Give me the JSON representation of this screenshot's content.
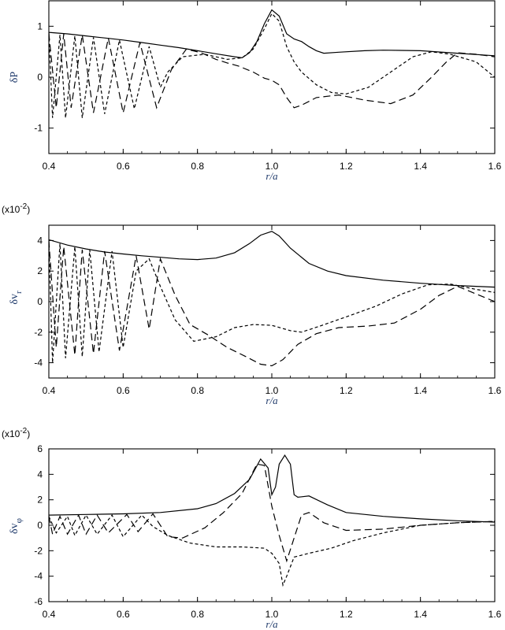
{
  "chart_data": [
    {
      "type": "line",
      "xlabel": "r/a",
      "ylabel": "δP",
      "multiplier": "",
      "xlim": [
        0.4,
        1.6
      ],
      "ylim": [
        -1.5,
        1.5
      ],
      "xticks": [
        "0.4",
        "0.6",
        "0.8",
        "1.0",
        "1.2",
        "1.4",
        "1.6"
      ],
      "yticks": [
        -1,
        0,
        1
      ],
      "ytick_labels": [
        "-1",
        "0",
        "1"
      ],
      "series": [
        {
          "style": "solid",
          "points": [
            [
              0.4,
              0.88
            ],
            [
              0.45,
              0.85
            ],
            [
              0.5,
              0.81
            ],
            [
              0.55,
              0.77
            ],
            [
              0.6,
              0.73
            ],
            [
              0.65,
              0.68
            ],
            [
              0.7,
              0.63
            ],
            [
              0.75,
              0.58
            ],
            [
              0.8,
              0.52
            ],
            [
              0.85,
              0.46
            ],
            [
              0.9,
              0.4
            ],
            [
              0.92,
              0.38
            ],
            [
              0.94,
              0.48
            ],
            [
              0.96,
              0.7
            ],
            [
              0.98,
              1.05
            ],
            [
              1.0,
              1.32
            ],
            [
              1.02,
              1.2
            ],
            [
              1.04,
              0.85
            ],
            [
              1.06,
              0.75
            ],
            [
              1.08,
              0.7
            ],
            [
              1.1,
              0.6
            ],
            [
              1.12,
              0.52
            ],
            [
              1.14,
              0.47
            ],
            [
              1.18,
              0.49
            ],
            [
              1.25,
              0.52
            ],
            [
              1.3,
              0.53
            ],
            [
              1.4,
              0.52
            ],
            [
              1.5,
              0.47
            ],
            [
              1.6,
              0.42
            ]
          ]
        },
        {
          "style": "long-dash",
          "points": [
            [
              0.4,
              0.86
            ],
            [
              0.42,
              -0.6
            ],
            [
              0.44,
              0.85
            ],
            [
              0.46,
              -0.6
            ],
            [
              0.49,
              0.83
            ],
            [
              0.52,
              -0.7
            ],
            [
              0.56,
              0.77
            ],
            [
              0.6,
              -0.7
            ],
            [
              0.645,
              0.68
            ],
            [
              0.69,
              -0.6
            ],
            [
              0.73,
              0.15
            ],
            [
              0.77,
              0.55
            ],
            [
              0.81,
              0.48
            ],
            [
              0.85,
              0.35
            ],
            [
              0.88,
              0.28
            ],
            [
              0.91,
              0.22
            ],
            [
              0.95,
              0.1
            ],
            [
              0.98,
              -0.02
            ],
            [
              1.0,
              -0.06
            ],
            [
              1.02,
              -0.15
            ],
            [
              1.04,
              -0.4
            ],
            [
              1.06,
              -0.6
            ],
            [
              1.08,
              -0.55
            ],
            [
              1.12,
              -0.4
            ],
            [
              1.18,
              -0.35
            ],
            [
              1.25,
              -0.45
            ],
            [
              1.32,
              -0.52
            ],
            [
              1.38,
              -0.35
            ],
            [
              1.43,
              0.0
            ],
            [
              1.47,
              0.3
            ],
            [
              1.5,
              0.48
            ],
            [
              1.55,
              0.45
            ],
            [
              1.6,
              0.4
            ]
          ]
        },
        {
          "style": "short-dash",
          "points": [
            [
              0.4,
              0.87
            ],
            [
              0.41,
              -0.8
            ],
            [
              0.43,
              0.83
            ],
            [
              0.445,
              -0.8
            ],
            [
              0.47,
              0.81
            ],
            [
              0.49,
              -0.8
            ],
            [
              0.52,
              0.78
            ],
            [
              0.55,
              -0.72
            ],
            [
              0.59,
              0.73
            ],
            [
              0.63,
              -0.62
            ],
            [
              0.67,
              0.6
            ],
            [
              0.7,
              -0.2
            ],
            [
              0.72,
              0.1
            ],
            [
              0.76,
              0.4
            ],
            [
              0.82,
              0.45
            ],
            [
              0.88,
              0.35
            ],
            [
              0.92,
              0.38
            ],
            [
              0.95,
              0.55
            ],
            [
              0.98,
              0.95
            ],
            [
              1.0,
              1.25
            ],
            [
              1.02,
              1.1
            ],
            [
              1.04,
              0.6
            ],
            [
              1.06,
              0.3
            ],
            [
              1.08,
              0.1
            ],
            [
              1.12,
              -0.15
            ],
            [
              1.16,
              -0.3
            ],
            [
              1.2,
              -0.33
            ],
            [
              1.26,
              -0.2
            ],
            [
              1.32,
              0.1
            ],
            [
              1.38,
              0.4
            ],
            [
              1.43,
              0.5
            ],
            [
              1.48,
              0.45
            ],
            [
              1.55,
              0.3
            ],
            [
              1.6,
              0.0
            ]
          ]
        }
      ]
    },
    {
      "type": "line",
      "xlabel": "r/a",
      "ylabel": "δv",
      "ylabel_sub": "r",
      "multiplier": "(x10",
      "multiplier_exp": "-2",
      "multiplier_close": ")",
      "xlim": [
        0.4,
        1.6
      ],
      "ylim": [
        -5,
        5
      ],
      "xticks": [
        "0.4",
        "0.6",
        "0.8",
        "1.0",
        "1.2",
        "1.4",
        "1.6"
      ],
      "yticks": [
        -4,
        -2,
        0,
        2,
        4
      ],
      "ytick_labels": [
        "-4",
        "-2",
        "0",
        "2",
        "4"
      ],
      "series": [
        {
          "style": "solid",
          "points": [
            [
              0.4,
              4.05
            ],
            [
              0.45,
              3.7
            ],
            [
              0.5,
              3.45
            ],
            [
              0.55,
              3.25
            ],
            [
              0.6,
              3.12
            ],
            [
              0.65,
              3.0
            ],
            [
              0.7,
              2.9
            ],
            [
              0.75,
              2.8
            ],
            [
              0.8,
              2.75
            ],
            [
              0.85,
              2.85
            ],
            [
              0.9,
              3.2
            ],
            [
              0.94,
              3.8
            ],
            [
              0.97,
              4.35
            ],
            [
              1.0,
              4.6
            ],
            [
              1.02,
              4.3
            ],
            [
              1.05,
              3.5
            ],
            [
              1.1,
              2.5
            ],
            [
              1.15,
              2.0
            ],
            [
              1.2,
              1.7
            ],
            [
              1.3,
              1.4
            ],
            [
              1.4,
              1.2
            ],
            [
              1.5,
              1.05
            ],
            [
              1.6,
              0.95
            ]
          ]
        },
        {
          "style": "long-dash",
          "points": [
            [
              0.4,
              4.0
            ],
            [
              0.42,
              -3.0
            ],
            [
              0.44,
              3.6
            ],
            [
              0.47,
              -3.5
            ],
            [
              0.49,
              3.4
            ],
            [
              0.52,
              -3.4
            ],
            [
              0.55,
              3.3
            ],
            [
              0.59,
              -3.2
            ],
            [
              0.635,
              3.0
            ],
            [
              0.67,
              -1.8
            ],
            [
              0.7,
              2.8
            ],
            [
              0.74,
              0.4
            ],
            [
              0.78,
              -1.5
            ],
            [
              0.83,
              -2.2
            ],
            [
              0.88,
              -3.0
            ],
            [
              0.93,
              -3.6
            ],
            [
              0.97,
              -4.1
            ],
            [
              1.0,
              -4.2
            ],
            [
              1.03,
              -3.8
            ],
            [
              1.07,
              -2.8
            ],
            [
              1.12,
              -2.1
            ],
            [
              1.18,
              -1.7
            ],
            [
              1.26,
              -1.6
            ],
            [
              1.33,
              -1.4
            ],
            [
              1.4,
              -0.5
            ],
            [
              1.45,
              0.4
            ],
            [
              1.5,
              1.0
            ],
            [
              1.55,
              0.5
            ],
            [
              1.6,
              0.0
            ]
          ]
        },
        {
          "style": "short-dash",
          "points": [
            [
              0.4,
              3.9
            ],
            [
              0.41,
              -4.0
            ],
            [
              0.43,
              3.8
            ],
            [
              0.445,
              -3.7
            ],
            [
              0.47,
              3.6
            ],
            [
              0.49,
              -3.6
            ],
            [
              0.51,
              3.4
            ],
            [
              0.535,
              -3.3
            ],
            [
              0.57,
              3.3
            ],
            [
              0.6,
              -3.0
            ],
            [
              0.635,
              2.0
            ],
            [
              0.67,
              2.8
            ],
            [
              0.7,
              1.0
            ],
            [
              0.74,
              -1.2
            ],
            [
              0.79,
              -2.6
            ],
            [
              0.85,
              -2.3
            ],
            [
              0.9,
              -1.7
            ],
            [
              0.95,
              -1.5
            ],
            [
              1.0,
              -1.55
            ],
            [
              1.05,
              -1.9
            ],
            [
              1.08,
              -2.0
            ],
            [
              1.13,
              -1.6
            ],
            [
              1.2,
              -1.0
            ],
            [
              1.28,
              -0.3
            ],
            [
              1.35,
              0.5
            ],
            [
              1.42,
              1.1
            ],
            [
              1.48,
              1.15
            ],
            [
              1.55,
              0.8
            ],
            [
              1.6,
              0.6
            ]
          ]
        }
      ]
    },
    {
      "type": "line",
      "xlabel": "r/a",
      "ylabel": "δv",
      "ylabel_sub": "φ",
      "multiplier": "(x10",
      "multiplier_exp": "-2",
      "multiplier_close": ")",
      "xlim": [
        0.4,
        1.6
      ],
      "ylim": [
        -6,
        6
      ],
      "xticks": [
        "0.4",
        "0.6",
        "0.8",
        "1.0",
        "1.2",
        "1.4",
        "1.6"
      ],
      "yticks": [
        -6,
        -4,
        -2,
        0,
        2,
        4,
        6
      ],
      "ytick_labels": [
        "-6",
        "-4",
        "-2",
        "0",
        "2",
        "4",
        "6"
      ],
      "series": [
        {
          "style": "solid",
          "points": [
            [
              0.4,
              0.8
            ],
            [
              0.5,
              0.85
            ],
            [
              0.6,
              0.9
            ],
            [
              0.7,
              1.0
            ],
            [
              0.8,
              1.3
            ],
            [
              0.85,
              1.7
            ],
            [
              0.9,
              2.5
            ],
            [
              0.94,
              3.6
            ],
            [
              0.97,
              5.2
            ],
            [
              0.99,
              4.5
            ],
            [
              1.0,
              2.4
            ],
            [
              1.01,
              3.0
            ],
            [
              1.02,
              4.8
            ],
            [
              1.035,
              5.5
            ],
            [
              1.05,
              4.8
            ],
            [
              1.06,
              2.4
            ],
            [
              1.07,
              2.2
            ],
            [
              1.1,
              2.3
            ],
            [
              1.15,
              1.6
            ],
            [
              1.2,
              1.0
            ],
            [
              1.3,
              0.7
            ],
            [
              1.4,
              0.5
            ],
            [
              1.5,
              0.35
            ],
            [
              1.6,
              0.25
            ]
          ]
        },
        {
          "style": "long-dash",
          "points": [
            [
              0.4,
              0.7
            ],
            [
              0.41,
              -0.7
            ],
            [
              0.43,
              0.7
            ],
            [
              0.45,
              -0.7
            ],
            [
              0.48,
              0.8
            ],
            [
              0.5,
              -0.7
            ],
            [
              0.53,
              0.8
            ],
            [
              0.56,
              -0.6
            ],
            [
              0.61,
              0.85
            ],
            [
              0.64,
              -0.5
            ],
            [
              0.68,
              0.9
            ],
            [
              0.72,
              -0.9
            ],
            [
              0.76,
              -1.0
            ],
            [
              0.82,
              -0.2
            ],
            [
              0.87,
              1.0
            ],
            [
              0.92,
              2.5
            ],
            [
              0.96,
              4.8
            ],
            [
              0.98,
              4.7
            ],
            [
              1.0,
              1.5
            ],
            [
              1.02,
              -0.8
            ],
            [
              1.04,
              -2.8
            ],
            [
              1.06,
              -1.0
            ],
            [
              1.08,
              0.8
            ],
            [
              1.1,
              1.0
            ],
            [
              1.14,
              0.2
            ],
            [
              1.2,
              -0.4
            ],
            [
              1.3,
              -0.3
            ],
            [
              1.4,
              0.0
            ],
            [
              1.5,
              0.2
            ],
            [
              1.6,
              0.3
            ]
          ]
        },
        {
          "style": "short-dash",
          "points": [
            [
              0.4,
              0.7
            ],
            [
              0.42,
              -0.6
            ],
            [
              0.45,
              0.7
            ],
            [
              0.47,
              -0.8
            ],
            [
              0.5,
              0.8
            ],
            [
              0.53,
              -0.7
            ],
            [
              0.57,
              0.8
            ],
            [
              0.6,
              -0.9
            ],
            [
              0.65,
              0.8
            ],
            [
              0.68,
              -0.1
            ],
            [
              0.72,
              -0.8
            ],
            [
              0.78,
              -1.4
            ],
            [
              0.85,
              -1.7
            ],
            [
              0.92,
              -1.7
            ],
            [
              0.98,
              -1.8
            ],
            [
              1.0,
              -2.2
            ],
            [
              1.02,
              -3.0
            ],
            [
              1.03,
              -4.7
            ],
            [
              1.04,
              -4.0
            ],
            [
              1.06,
              -2.5
            ],
            [
              1.1,
              -2.2
            ],
            [
              1.16,
              -1.8
            ],
            [
              1.22,
              -1.2
            ],
            [
              1.3,
              -0.6
            ],
            [
              1.4,
              0.0
            ],
            [
              1.5,
              0.2
            ],
            [
              1.6,
              0.3
            ]
          ]
        }
      ]
    }
  ]
}
